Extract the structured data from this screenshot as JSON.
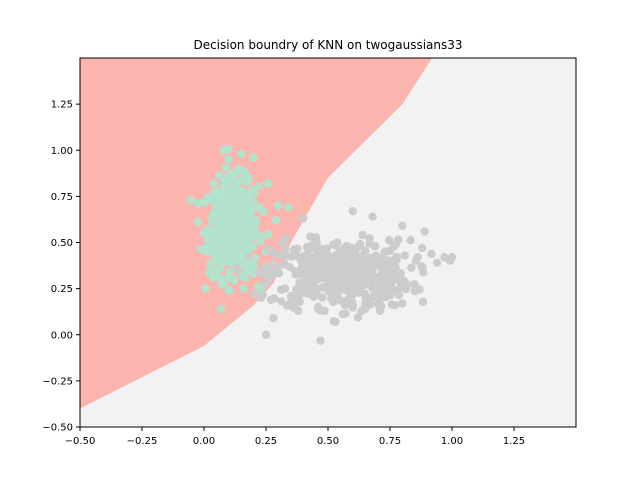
{
  "chart_data": {
    "type": "scatter",
    "title": "Decision boundry of KNN on twogaussians33",
    "xlabel": "",
    "ylabel": "",
    "xlim": [
      -0.5,
      1.5
    ],
    "ylim": [
      -0.5,
      1.5
    ],
    "xticks": [
      -0.5,
      -0.25,
      0.0,
      0.25,
      0.5,
      0.75,
      1.0,
      1.25
    ],
    "yticks": [
      -0.5,
      -0.25,
      0.0,
      0.25,
      0.5,
      0.75,
      1.0,
      1.25
    ],
    "xtick_labels": [
      "−0.50",
      "−0.25",
      "0.00",
      "0.25",
      "0.50",
      "0.75",
      "1.00",
      "1.25"
    ],
    "ytick_labels": [
      "−0.50",
      "−0.25",
      "0.00",
      "0.25",
      "0.50",
      "0.75",
      "1.00",
      "1.25"
    ],
    "grid": false,
    "legend": "none",
    "decision_regions": {
      "colors": {
        "class_a": "#fbb4ae",
        "class_b": "#f2f2f2"
      },
      "boundary": [
        [
          -0.5,
          -0.4
        ],
        [
          0.0,
          -0.06
        ],
        [
          0.2,
          0.16
        ],
        [
          0.28,
          0.28
        ],
        [
          0.35,
          0.5
        ],
        [
          0.5,
          0.85
        ],
        [
          0.65,
          1.05
        ],
        [
          0.8,
          1.25
        ],
        [
          0.92,
          1.5
        ]
      ]
    },
    "series": [
      {
        "color": "#b3e2cd",
        "distribution": {
          "center": [
            0.12,
            0.58
          ],
          "spread": [
            0.05,
            0.13
          ],
          "count": 500
        },
        "points": [
          [
            0.08,
            1.0
          ],
          [
            0.15,
            0.98
          ],
          [
            0.2,
            0.96
          ],
          [
            0.1,
            0.95
          ],
          [
            0.04,
            0.82
          ],
          [
            0.18,
            0.85
          ],
          [
            0.26,
            0.82
          ],
          [
            0.0,
            0.72
          ],
          [
            0.3,
            0.7
          ],
          [
            0.34,
            0.69
          ],
          [
            0.0,
            0.55
          ],
          [
            0.29,
            0.62
          ],
          [
            0.03,
            0.45
          ],
          [
            0.1,
            0.42
          ],
          [
            0.25,
            0.45
          ],
          [
            0.04,
            0.35
          ],
          [
            0.28,
            0.38
          ],
          [
            0.07,
            0.28
          ],
          [
            0.16,
            0.25
          ],
          [
            0.22,
            0.26
          ],
          [
            0.08,
            0.27
          ],
          [
            0.12,
            0.3
          ],
          [
            0.2,
            0.33
          ]
        ]
      },
      {
        "color": "#cccccc",
        "distribution": {
          "center": [
            0.55,
            0.33
          ],
          "spread": [
            0.14,
            0.09
          ],
          "count": 500
        },
        "points": [
          [
            0.25,
            0.0
          ],
          [
            0.28,
            0.09
          ],
          [
            0.53,
            0.07
          ],
          [
            0.6,
            0.67
          ],
          [
            0.68,
            0.64
          ],
          [
            0.8,
            0.59
          ],
          [
            0.89,
            0.56
          ],
          [
            0.97,
            0.42
          ],
          [
            0.94,
            0.39
          ],
          [
            0.88,
            0.47
          ],
          [
            0.77,
            0.16
          ],
          [
            0.8,
            0.17
          ],
          [
            0.4,
            0.63
          ],
          [
            0.33,
            0.52
          ],
          [
            0.31,
            0.43
          ],
          [
            0.23,
            0.2
          ],
          [
            0.27,
            0.19
          ],
          [
            0.46,
            0.15
          ],
          [
            0.71,
            0.13
          ],
          [
            0.65,
            0.14
          ],
          [
            1.0,
            0.42
          ],
          [
            0.38,
            0.13
          ]
        ]
      }
    ]
  }
}
